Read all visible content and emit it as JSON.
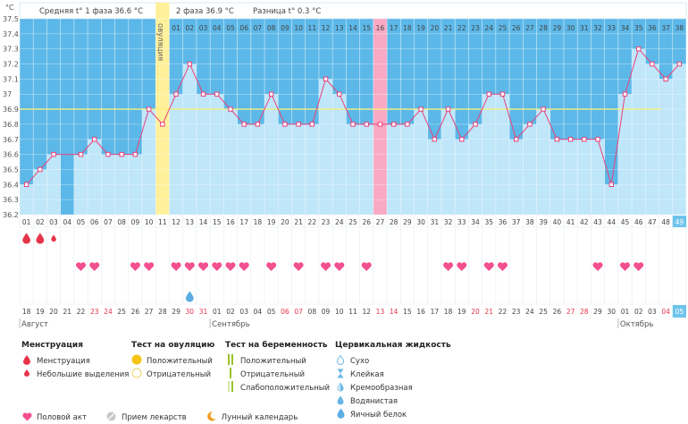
{
  "header": {
    "unit": "°C",
    "phase1_label": "Средняя t° 1 фаза 36.6 °C",
    "phase2_label": "2 фаза 36.9 °C",
    "diff_label": "Разница t° 0.3 °C",
    "ovulation_label": "овуляция"
  },
  "chart_data": {
    "type": "line",
    "title": "",
    "ylim": [
      36.2,
      37.5
    ],
    "y_ticks": [
      "37.5",
      "37.4",
      "37.3",
      "37.2",
      "37.1",
      "37",
      "36.9",
      "36.8",
      "36.7",
      "36.6",
      "36.5",
      "36.4",
      "36.3",
      "36.2"
    ],
    "coverline": 36.9,
    "cycle_days": [
      "01",
      "02",
      "03",
      "04",
      "05",
      "06",
      "07",
      "08",
      "09",
      "10",
      "11",
      "12",
      "13",
      "14",
      "15",
      "16",
      "17",
      "18",
      "19",
      "20",
      "21",
      "22",
      "23",
      "24",
      "25",
      "26",
      "27",
      "28",
      "29",
      "30",
      "31",
      "32",
      "33",
      "34",
      "35",
      "36",
      "37",
      "38",
      "39",
      "40",
      "41",
      "42",
      "43",
      "44",
      "45",
      "46",
      "47",
      "48",
      "49"
    ],
    "temperatures": [
      36.4,
      36.5,
      36.6,
      null,
      36.6,
      36.7,
      36.6,
      36.6,
      36.6,
      36.9,
      36.8,
      37.0,
      37.2,
      37.0,
      37.0,
      36.9,
      36.8,
      36.8,
      37.0,
      36.8,
      36.8,
      36.8,
      37.1,
      37.0,
      36.8,
      36.8,
      36.8,
      36.8,
      36.8,
      36.9,
      36.7,
      36.9,
      36.7,
      36.8,
      37.0,
      37.0,
      36.7,
      36.8,
      36.9,
      36.7,
      36.7,
      36.7,
      36.7,
      36.4,
      37.0,
      37.3,
      37.2,
      37.1,
      37.2
    ],
    "top_day_labels": [
      "01",
      "02",
      "03",
      "04",
      "05",
      "06",
      "07",
      "08",
      "09",
      "10",
      "11",
      "12",
      "13",
      "14",
      "15",
      "16",
      "17",
      "18",
      "19",
      "20",
      "21",
      "22",
      "23",
      "24",
      "25",
      "26",
      "27",
      "28",
      "29",
      "30",
      "31",
      "32",
      "33",
      "34",
      "35",
      "36",
      "37",
      "38"
    ],
    "ovulation_day": 11,
    "pink_marker_day": 27,
    "highlight_day": 49,
    "gap_day": 4,
    "moon_day": 28,
    "menstruation_days": [
      1,
      2
    ],
    "light_discharge_days": [
      3
    ],
    "intercourse_days": [
      5,
      6,
      9,
      10,
      12,
      13,
      14,
      15,
      16,
      17,
      19,
      21,
      23,
      24,
      26,
      32,
      33,
      35,
      36,
      43,
      45,
      46
    ],
    "cervical_day": 13,
    "calendar_dates": [
      "18",
      "19",
      "20",
      "21",
      "22",
      "23",
      "24",
      "25",
      "26",
      "27",
      "28",
      "29",
      "30",
      "31",
      "01",
      "02",
      "03",
      "04",
      "05",
      "06",
      "07",
      "08",
      "09",
      "10",
      "11",
      "12",
      "13",
      "14",
      "15",
      "16",
      "17",
      "18",
      "19",
      "20",
      "21",
      "22",
      "23",
      "24",
      "25",
      "26",
      "27",
      "28",
      "29",
      "30",
      "01",
      "02",
      "03",
      "04",
      "05"
    ],
    "weekend_indexes": [
      5,
      6,
      12,
      13,
      19,
      20,
      26,
      27,
      33,
      34,
      40,
      41,
      47
    ],
    "months": [
      {
        "label": "Август",
        "start": 1
      },
      {
        "label": "Сентябрь",
        "start": 15
      },
      {
        "label": "Октябрь",
        "start": 45
      }
    ]
  },
  "colors": {
    "phase1": "#5cb8e8",
    "phase2": "#bfe6f9",
    "gap": "#5cb8e8",
    "ovulation": "#fff09a",
    "pink_marker": "#f9a9c4",
    "line": "#e8417c",
    "coverline": "#f6f07d",
    "heart": "#f2508f",
    "drop": "#e5344a"
  },
  "legend": {
    "menstruation": {
      "title": "Менструация",
      "items": [
        "Менструация",
        "Небольшие выделения"
      ]
    },
    "ovulation_test": {
      "title": "Тест на овуляцию",
      "items": [
        "Положительный",
        "Отрицательный"
      ]
    },
    "pregnancy_test": {
      "title": "Тест на беременность",
      "items": [
        "Положительный",
        "Отрицательный",
        "Слабоположительный"
      ]
    },
    "cervical": {
      "title": "Цервикальная жидкость",
      "items": [
        "Сухо",
        "Клейкая",
        "Кремообразная",
        "Водянистая",
        "Яичный белок"
      ]
    },
    "other": {
      "items": [
        "Половой акт",
        "Прием лекарств",
        "Лунный календарь"
      ]
    }
  }
}
